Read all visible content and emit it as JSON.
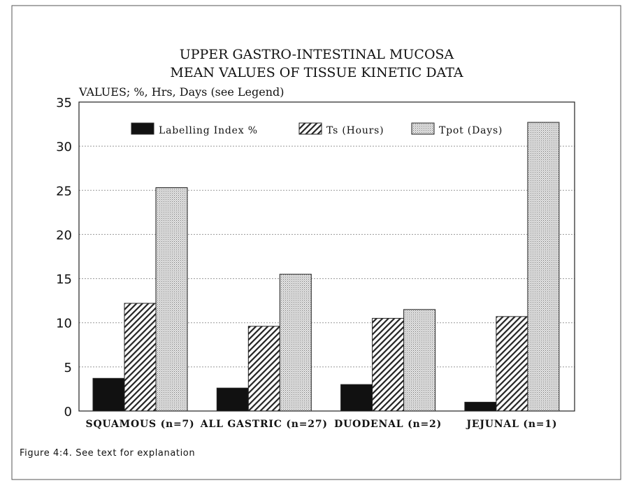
{
  "chart_data": {
    "type": "bar",
    "title": "UPPER GASTRO-INTESTINAL MUCOSA",
    "subtitle": "MEAN VALUES OF TISSUE KINETIC DATA",
    "ylabel": "VALUES; %, Hrs, Days (see Legend)",
    "xlabel": "",
    "ylim": [
      0,
      35
    ],
    "yticks": [
      0,
      5,
      10,
      15,
      20,
      25,
      30,
      35
    ],
    "grid": true,
    "legend_position": "top",
    "categories": [
      "SQUAMOUS (n=7)",
      "ALL GASTRIC (n=27)",
      "DUODENAL (n=2)",
      "JEJUNAL  (n=1)"
    ],
    "series": [
      {
        "name": "Labelling Index %",
        "values": [
          3.7,
          2.6,
          3.0,
          1.0
        ],
        "fill": "#111111"
      },
      {
        "name": "Ts (Hours)",
        "values": [
          12.2,
          9.6,
          10.5,
          10.7
        ],
        "fill": "hatch"
      },
      {
        "name": "Tpot (Days)",
        "values": [
          25.3,
          15.5,
          11.5,
          32.7
        ],
        "fill": "dots"
      }
    ]
  },
  "caption": "Figure 4:4. See text for explanation"
}
